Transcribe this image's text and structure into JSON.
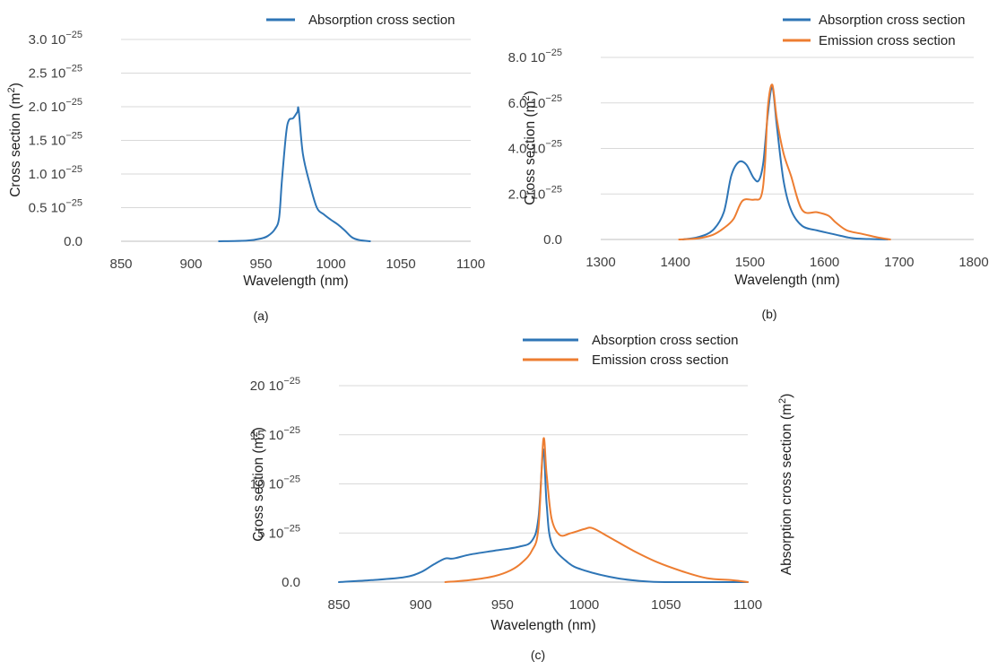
{
  "colors": {
    "absorption": "#2e75b6",
    "emission": "#ed7d31"
  },
  "chart_data": [
    {
      "type": "line",
      "caption": "(a)",
      "xlabel": "Wavelength (nm)",
      "ylabel": "Cross section (m",
      "ylabel_sup": "2",
      "ylabel_end": ")",
      "xlim": [
        850,
        1100
      ],
      "ylim": [
        0,
        3.0
      ],
      "xticks": [
        850,
        900,
        950,
        1000,
        1050,
        1100
      ],
      "yticks": [
        0,
        0.5,
        1.0,
        1.5,
        2.0,
        2.5,
        3.0
      ],
      "ytick_labels": [
        "0.0",
        "0.5 10",
        "1.0 10",
        "1.5 10",
        "2.0 10",
        "2.5 10",
        "3.0 10"
      ],
      "ytick_exponent": "−25",
      "grid": true,
      "legend_position": "top-right",
      "series": [
        {
          "name": "Absorption cross section",
          "color_key": "absorption",
          "x": [
            920,
            940,
            950,
            955,
            960,
            963,
            965,
            968,
            970,
            973,
            976,
            977,
            980,
            985,
            990,
            995,
            1000,
            1005,
            1010,
            1015,
            1020,
            1028
          ],
          "y": [
            0.0,
            0.01,
            0.04,
            0.08,
            0.18,
            0.35,
            0.9,
            1.6,
            1.8,
            1.83,
            1.92,
            1.95,
            1.3,
            0.85,
            0.5,
            0.4,
            0.32,
            0.25,
            0.16,
            0.06,
            0.02,
            0.0
          ]
        }
      ]
    },
    {
      "type": "line",
      "caption": "(b)",
      "xlabel": "Wavelength (nm)",
      "ylabel": "Cross section (m",
      "ylabel_sup": "2",
      "ylabel_end": ")",
      "xlim": [
        1300,
        1800
      ],
      "ylim": [
        0,
        8.0
      ],
      "xticks": [
        1300,
        1400,
        1500,
        1600,
        1700,
        1800
      ],
      "yticks": [
        0,
        2.0,
        4.0,
        6.0,
        8.0
      ],
      "ytick_labels": [
        "0.0",
        "2.0 10",
        "4.0 10",
        "6.0 10",
        "8.0 10"
      ],
      "ytick_exponent": "−25",
      "grid": true,
      "legend_position": "top-right",
      "series": [
        {
          "name": "Absorption cross section",
          "color_key": "absorption",
          "x": [
            1410,
            1430,
            1450,
            1465,
            1475,
            1485,
            1495,
            1505,
            1512,
            1518,
            1524,
            1530,
            1536,
            1545,
            1555,
            1570,
            1590,
            1610,
            1630,
            1640,
            1660,
            1685
          ],
          "y": [
            0.0,
            0.1,
            0.4,
            1.2,
            2.8,
            3.4,
            3.3,
            2.7,
            2.6,
            3.4,
            5.5,
            6.7,
            5.0,
            2.6,
            1.3,
            0.6,
            0.4,
            0.25,
            0.1,
            0.05,
            0.02,
            0.0
          ]
        },
        {
          "name": "Emission cross section",
          "color_key": "emission",
          "x": [
            1405,
            1430,
            1450,
            1465,
            1478,
            1490,
            1505,
            1515,
            1520,
            1524,
            1530,
            1536,
            1545,
            1555,
            1570,
            1590,
            1605,
            1615,
            1630,
            1650,
            1670,
            1688
          ],
          "y": [
            0.0,
            0.05,
            0.2,
            0.5,
            0.9,
            1.7,
            1.75,
            1.9,
            3.2,
            5.8,
            6.8,
            5.3,
            3.8,
            2.8,
            1.3,
            1.2,
            1.05,
            0.75,
            0.4,
            0.25,
            0.1,
            0.0
          ]
        }
      ]
    },
    {
      "type": "line",
      "caption": "(c)",
      "xlabel": "Wavelength (nm)",
      "ylabel": "Cross section (m",
      "ylabel_sup": "2",
      "ylabel_end": ")",
      "ylabel_right": "Absorption cross section (m",
      "xlim": [
        850,
        1100
      ],
      "ylim": [
        0,
        20
      ],
      "xticks": [
        850,
        900,
        950,
        1000,
        1050,
        1100
      ],
      "yticks": [
        0,
        5,
        10,
        15,
        20
      ],
      "ytick_labels": [
        "0.0",
        "5 10",
        "10 10",
        "15 10",
        "20 10"
      ],
      "ytick_exponent": "−25",
      "grid": true,
      "legend_position": "top-center",
      "series": [
        {
          "name": "Absorption cross section",
          "color_key": "absorption",
          "x": [
            850,
            870,
            890,
            900,
            908,
            915,
            920,
            930,
            945,
            960,
            968,
            972,
            975,
            977,
            980,
            990,
            1000,
            1020,
            1040,
            1060,
            1080,
            1100
          ],
          "y": [
            0.0,
            0.2,
            0.5,
            1.0,
            1.8,
            2.4,
            2.4,
            2.8,
            3.2,
            3.6,
            4.2,
            6.5,
            13.5,
            8.0,
            4.0,
            2.0,
            1.2,
            0.4,
            0.05,
            0.0,
            0.0,
            0.0
          ]
        },
        {
          "name": "Emission cross section",
          "color_key": "emission",
          "x": [
            915,
            930,
            945,
            955,
            962,
            968,
            972,
            975,
            977,
            980,
            985,
            992,
            1000,
            1005,
            1015,
            1030,
            1045,
            1060,
            1075,
            1090,
            1100
          ],
          "y": [
            0.0,
            0.2,
            0.6,
            1.2,
            2.0,
            3.2,
            5.5,
            14.5,
            11.0,
            6.5,
            4.8,
            5.0,
            5.4,
            5.5,
            4.6,
            3.2,
            2.0,
            1.1,
            0.4,
            0.2,
            0.0
          ]
        }
      ]
    }
  ]
}
